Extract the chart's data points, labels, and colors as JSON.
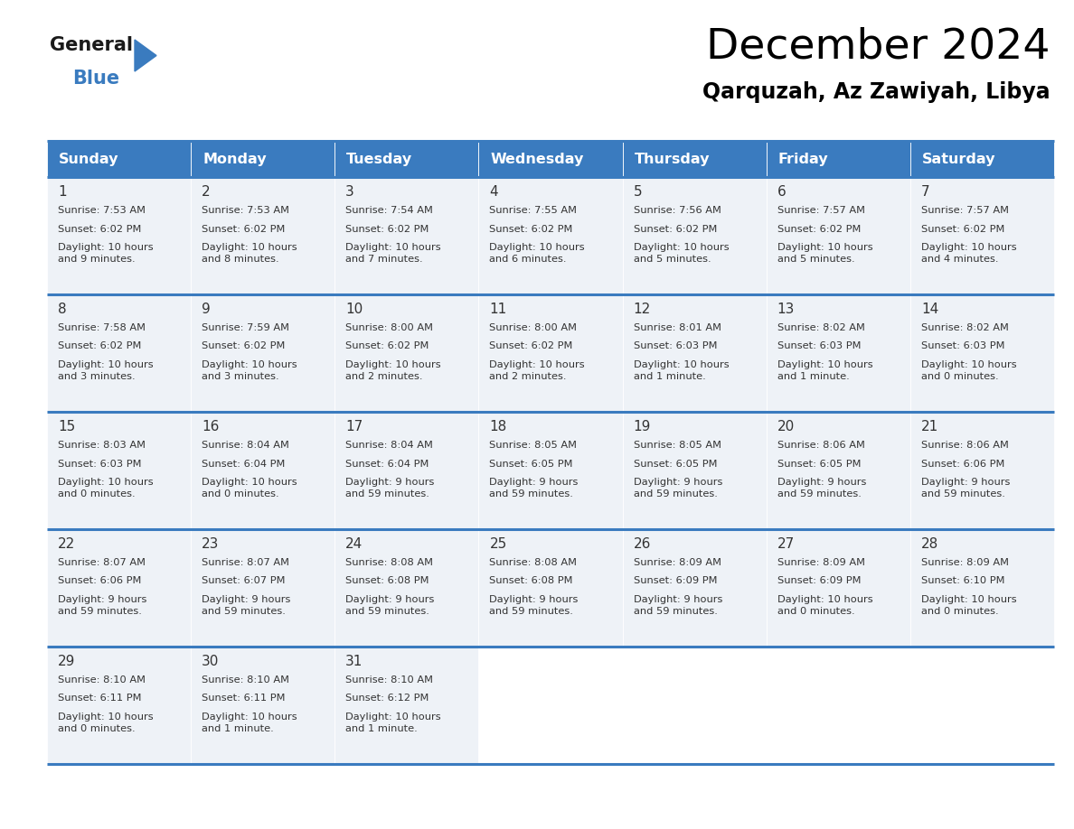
{
  "title": "December 2024",
  "subtitle": "Qarquzah, Az Zawiyah, Libya",
  "days_of_week": [
    "Sunday",
    "Monday",
    "Tuesday",
    "Wednesday",
    "Thursday",
    "Friday",
    "Saturday"
  ],
  "header_bg": "#3a7bbf",
  "header_text": "#ffffff",
  "row_bg_light": "#eef2f7",
  "border_color": "#3a7bbf",
  "text_color": "#333333",
  "day_cells": [
    {
      "day": 1,
      "col": 0,
      "row": 0,
      "sunrise": "7:53 AM",
      "sunset": "6:02 PM",
      "daylight_hrs": 10,
      "daylight_min": 9
    },
    {
      "day": 2,
      "col": 1,
      "row": 0,
      "sunrise": "7:53 AM",
      "sunset": "6:02 PM",
      "daylight_hrs": 10,
      "daylight_min": 8
    },
    {
      "day": 3,
      "col": 2,
      "row": 0,
      "sunrise": "7:54 AM",
      "sunset": "6:02 PM",
      "daylight_hrs": 10,
      "daylight_min": 7
    },
    {
      "day": 4,
      "col": 3,
      "row": 0,
      "sunrise": "7:55 AM",
      "sunset": "6:02 PM",
      "daylight_hrs": 10,
      "daylight_min": 6
    },
    {
      "day": 5,
      "col": 4,
      "row": 0,
      "sunrise": "7:56 AM",
      "sunset": "6:02 PM",
      "daylight_hrs": 10,
      "daylight_min": 5
    },
    {
      "day": 6,
      "col": 5,
      "row": 0,
      "sunrise": "7:57 AM",
      "sunset": "6:02 PM",
      "daylight_hrs": 10,
      "daylight_min": 5
    },
    {
      "day": 7,
      "col": 6,
      "row": 0,
      "sunrise": "7:57 AM",
      "sunset": "6:02 PM",
      "daylight_hrs": 10,
      "daylight_min": 4
    },
    {
      "day": 8,
      "col": 0,
      "row": 1,
      "sunrise": "7:58 AM",
      "sunset": "6:02 PM",
      "daylight_hrs": 10,
      "daylight_min": 3
    },
    {
      "day": 9,
      "col": 1,
      "row": 1,
      "sunrise": "7:59 AM",
      "sunset": "6:02 PM",
      "daylight_hrs": 10,
      "daylight_min": 3
    },
    {
      "day": 10,
      "col": 2,
      "row": 1,
      "sunrise": "8:00 AM",
      "sunset": "6:02 PM",
      "daylight_hrs": 10,
      "daylight_min": 2
    },
    {
      "day": 11,
      "col": 3,
      "row": 1,
      "sunrise": "8:00 AM",
      "sunset": "6:02 PM",
      "daylight_hrs": 10,
      "daylight_min": 2
    },
    {
      "day": 12,
      "col": 4,
      "row": 1,
      "sunrise": "8:01 AM",
      "sunset": "6:03 PM",
      "daylight_hrs": 10,
      "daylight_min": 1
    },
    {
      "day": 13,
      "col": 5,
      "row": 1,
      "sunrise": "8:02 AM",
      "sunset": "6:03 PM",
      "daylight_hrs": 10,
      "daylight_min": 1
    },
    {
      "day": 14,
      "col": 6,
      "row": 1,
      "sunrise": "8:02 AM",
      "sunset": "6:03 PM",
      "daylight_hrs": 10,
      "daylight_min": 0
    },
    {
      "day": 15,
      "col": 0,
      "row": 2,
      "sunrise": "8:03 AM",
      "sunset": "6:03 PM",
      "daylight_hrs": 10,
      "daylight_min": 0
    },
    {
      "day": 16,
      "col": 1,
      "row": 2,
      "sunrise": "8:04 AM",
      "sunset": "6:04 PM",
      "daylight_hrs": 10,
      "daylight_min": 0
    },
    {
      "day": 17,
      "col": 2,
      "row": 2,
      "sunrise": "8:04 AM",
      "sunset": "6:04 PM",
      "daylight_hrs": 9,
      "daylight_min": 59
    },
    {
      "day": 18,
      "col": 3,
      "row": 2,
      "sunrise": "8:05 AM",
      "sunset": "6:05 PM",
      "daylight_hrs": 9,
      "daylight_min": 59
    },
    {
      "day": 19,
      "col": 4,
      "row": 2,
      "sunrise": "8:05 AM",
      "sunset": "6:05 PM",
      "daylight_hrs": 9,
      "daylight_min": 59
    },
    {
      "day": 20,
      "col": 5,
      "row": 2,
      "sunrise": "8:06 AM",
      "sunset": "6:05 PM",
      "daylight_hrs": 9,
      "daylight_min": 59
    },
    {
      "day": 21,
      "col": 6,
      "row": 2,
      "sunrise": "8:06 AM",
      "sunset": "6:06 PM",
      "daylight_hrs": 9,
      "daylight_min": 59
    },
    {
      "day": 22,
      "col": 0,
      "row": 3,
      "sunrise": "8:07 AM",
      "sunset": "6:06 PM",
      "daylight_hrs": 9,
      "daylight_min": 59
    },
    {
      "day": 23,
      "col": 1,
      "row": 3,
      "sunrise": "8:07 AM",
      "sunset": "6:07 PM",
      "daylight_hrs": 9,
      "daylight_min": 59
    },
    {
      "day": 24,
      "col": 2,
      "row": 3,
      "sunrise": "8:08 AM",
      "sunset": "6:08 PM",
      "daylight_hrs": 9,
      "daylight_min": 59
    },
    {
      "day": 25,
      "col": 3,
      "row": 3,
      "sunrise": "8:08 AM",
      "sunset": "6:08 PM",
      "daylight_hrs": 9,
      "daylight_min": 59
    },
    {
      "day": 26,
      "col": 4,
      "row": 3,
      "sunrise": "8:09 AM",
      "sunset": "6:09 PM",
      "daylight_hrs": 9,
      "daylight_min": 59
    },
    {
      "day": 27,
      "col": 5,
      "row": 3,
      "sunrise": "8:09 AM",
      "sunset": "6:09 PM",
      "daylight_hrs": 10,
      "daylight_min": 0
    },
    {
      "day": 28,
      "col": 6,
      "row": 3,
      "sunrise": "8:09 AM",
      "sunset": "6:10 PM",
      "daylight_hrs": 10,
      "daylight_min": 0
    },
    {
      "day": 29,
      "col": 0,
      "row": 4,
      "sunrise": "8:10 AM",
      "sunset": "6:11 PM",
      "daylight_hrs": 10,
      "daylight_min": 0
    },
    {
      "day": 30,
      "col": 1,
      "row": 4,
      "sunrise": "8:10 AM",
      "sunset": "6:11 PM",
      "daylight_hrs": 10,
      "daylight_min": 1
    },
    {
      "day": 31,
      "col": 2,
      "row": 4,
      "sunrise": "8:10 AM",
      "sunset": "6:12 PM",
      "daylight_hrs": 10,
      "daylight_min": 1
    }
  ]
}
